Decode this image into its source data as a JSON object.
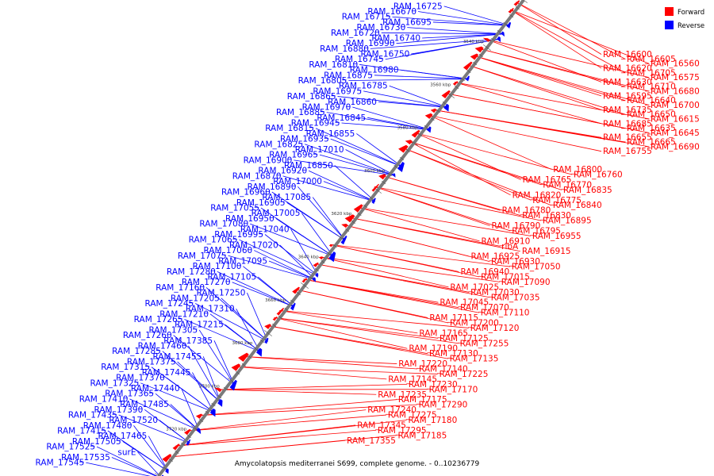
{
  "caption": "Amycolatopsis mediterranei S699, complete genome. - 0..10236779",
  "legend": [
    {
      "label": "Forward",
      "color": "#ff0000"
    },
    {
      "label": "Reverse",
      "color": "#0000ff"
    }
  ],
  "colors": {
    "forward": "#ff0000",
    "reverse": "#0000ff",
    "backbone": "#7a7a7a"
  },
  "ruler_labels": [
    "3540 kbp",
    "3560 kbp",
    "3580 kbp",
    "3600 kbp",
    "3620 kbp",
    "3640 kbp",
    "3660 kbp",
    "3680 kbp",
    "3700 kbp",
    "3720 kbp"
  ],
  "reverse_labels": [
    "RAM_16725",
    "RAM_16670",
    "RAM_16715",
    "RAM_16695",
    "RAM_16730",
    "RAM_16720",
    "RAM_16740",
    "RAM_16990",
    "RAM_16880",
    "RAM_16750",
    "RAM_16745",
    "RAM_16810",
    "RAM_16980",
    "RAM_16875",
    "RAM_16805",
    "RAM_16785",
    "RAM_16975",
    "RAM_16865",
    "RAM_16860",
    "RAM_16970",
    "RAM_16885",
    "RAM_16845",
    "RAM_16945",
    "RAM_16815",
    "RAM_16855",
    "RAM_16935",
    "RAM_16825",
    "RAM_17010",
    "RAM_16965",
    "RAM_16900",
    "RAM_16850",
    "RAM_16920",
    "RAM_16870",
    "RAM_17000",
    "RAM_16890",
    "RAM_16960",
    "RAM_17085",
    "RAM_16905",
    "RAM_17055",
    "RAM_17005",
    "RAM_16950",
    "RAM_17080",
    "RAM_17040",
    "RAM_16995",
    "RAM_17065",
    "RAM_17020",
    "RAM_17060",
    "RAM_17075",
    "RAM_17095",
    "RAM_17100",
    "RAM_17280",
    "RAM_17105",
    "RAM_17270",
    "RAM_17160",
    "RAM_17250",
    "RAM_17205",
    "RAM_17245",
    "RAM_17310",
    "RAM_17210",
    "RAM_17265",
    "RAM_17215",
    "RAM_17305",
    "RAM_17260",
    "RAM_17385",
    "RAM_17460",
    "RAM_17285",
    "RAM_17455",
    "RAM_17375",
    "RAM_17315",
    "RAM_17445",
    "RAM_17370",
    "RAM_17325",
    "RAM_17440",
    "RAM_17365",
    "RAM_17410",
    "RAM_17485",
    "RAM_17390",
    "RAM_17435",
    "RAM_17520",
    "RAM_17480",
    "RAM_17415",
    "RAM_17465",
    "RAM_17505",
    "RAM_17525",
    "surE",
    "RAM_17535",
    "RAM_17545"
  ],
  "forward_labels": [
    "RAM_16600",
    "RAM_16605",
    "RAM_16560",
    "RAM_16620",
    "RAM_16705",
    "RAM_16575",
    "RAM_16630",
    "RAM_16710",
    "RAM_16680",
    "RAM_16595",
    "RAM_16640",
    "RAM_16700",
    "RAM_16735",
    "RAM_16650",
    "RAM_16615",
    "RAM_16685",
    "RAM_16635",
    "RAM_16645",
    "RAM_16655",
    "RAM_16665",
    "RAM_16690",
    "RAM_16755",
    "RAM_16800",
    "RAM_16760",
    "RAM_16765",
    "RAM_16770",
    "RAM_16835",
    "RAM_16820",
    "RAM_16775",
    "RAM_16840",
    "RAM_16780",
    "RAM_16830",
    "RAM_16895",
    "RAM_16790",
    "RAM_16795",
    "RAM_16955",
    "RAM_16910",
    "ribA",
    "RAM_16915",
    "RAM_16925",
    "RAM_16930",
    "RAM_17050",
    "RAM_16940",
    "RAM_17015",
    "RAM_17090",
    "RAM_17025",
    "RAM_17030",
    "RAM_17035",
    "RAM_17045",
    "RAM_17070",
    "RAM_17110",
    "RAM_17115",
    "RAM_17200",
    "RAM_17120",
    "RAM_17165",
    "RAM_17125",
    "RAM_17255",
    "RAM_17190",
    "RAM_17130",
    "RAM_17135",
    "RAM_17220",
    "RAM_17140",
    "RAM_17225",
    "RAM_17145",
    "RAM_17230",
    "RAM_17170",
    "RAM_17235",
    "RAM_17175",
    "RAM_17290",
    "RAM_17240",
    "RAM_17275",
    "RAM_17180",
    "RAM_17345",
    "RAM_17295",
    "RAM_17185",
    "RAM_17355"
  ]
}
